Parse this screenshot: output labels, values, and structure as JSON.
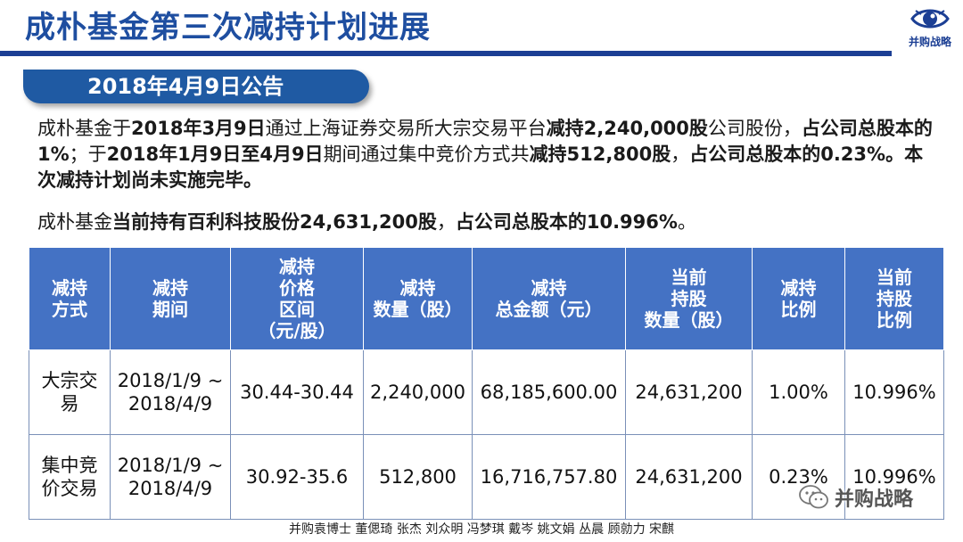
{
  "header": {
    "title": "成朴基金第三次减持计划进展",
    "logo_text": "并购战略",
    "logo_icon": "eye-icon"
  },
  "announcement": {
    "date_label": "2018年4月9日公告"
  },
  "paragraph1": {
    "s1": "成朴基金于",
    "s2": "2018年3月9日",
    "s3": "通过上海证券交易所大宗交易平台",
    "s4": "减持2,240,000股",
    "s5": "公司股份，",
    "s6": "占公司总股本的1%",
    "s7": "；于",
    "s8": "2018年1月9日至4月9日",
    "s9": "期间通过集中竞价方式共",
    "s10": "减持512,800股",
    "s11": "，",
    "s12": "占公司总股本的0.23%。本次减持计划尚未实施完毕。"
  },
  "paragraph2": {
    "s1": "成朴基金",
    "s2": "当前持有百利科技股份24,631,200股",
    "s3": "，",
    "s4": "占公司总股本的10.996%",
    "s5": "。"
  },
  "table": {
    "headers": [
      "减持\n方式",
      "减持\n期间",
      "减持\n价格\n区间\n（元/股）",
      "减持\n数量（股）",
      "减持\n总金额（元）",
      "当前\n持股\n数量（股）",
      "减持\n比例",
      "当前\n持股\n比例"
    ],
    "rows": [
      [
        "大宗交易",
        "2018/1/9 ~\n2018/4/9",
        "30.44-30.44",
        "2,240,000",
        "68,185,600.00",
        "24,631,200",
        "1.00%",
        "10.996%"
      ],
      [
        "集中竞价交易",
        "2018/1/9 ~\n2018/4/9",
        "30.92-35.6",
        "512,800",
        "16,716,757.80",
        "24,631,200",
        "0.23%",
        "10.996%"
      ]
    ]
  },
  "watermark": {
    "text": "并购战略",
    "icon": "wechat-icon"
  },
  "footer": {
    "credits": "并购袁博士 董偲琦 张杰 刘众明 冯梦琪 戴岑 姚文娟  丛晨 顾勍力 宋麒"
  },
  "colors": {
    "title": "#1e4ea0",
    "pill": "#1f5aa3",
    "table_header": "#4472c4"
  }
}
